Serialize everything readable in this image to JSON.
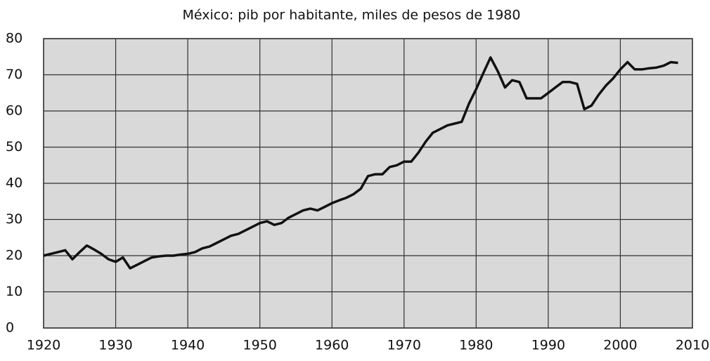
{
  "chart_data": {
    "type": "line",
    "title": "México: pib por habitante, miles de pesos de 1980",
    "xlim": [
      1920,
      2010
    ],
    "xticks": [
      1920,
      1930,
      1940,
      1950,
      1960,
      1970,
      1980,
      1990,
      2000,
      2010
    ],
    "ylim": [
      0,
      80
    ],
    "yticks": [
      0,
      10,
      20,
      30,
      40,
      50,
      60,
      70,
      80
    ],
    "grid": true,
    "x": [
      1920,
      1921,
      1922,
      1923,
      1924,
      1925,
      1926,
      1927,
      1928,
      1929,
      1930,
      1931,
      1932,
      1933,
      1934,
      1935,
      1936,
      1937,
      1938,
      1939,
      1940,
      1941,
      1942,
      1943,
      1944,
      1945,
      1946,
      1947,
      1948,
      1949,
      1950,
      1951,
      1952,
      1953,
      1954,
      1955,
      1956,
      1957,
      1958,
      1959,
      1960,
      1961,
      1962,
      1963,
      1964,
      1965,
      1966,
      1967,
      1968,
      1969,
      1970,
      1971,
      1972,
      1973,
      1974,
      1975,
      1976,
      1977,
      1978,
      1979,
      1980,
      1981,
      1982,
      1983,
      1984,
      1985,
      1986,
      1987,
      1988,
      1989,
      1990,
      1991,
      1992,
      1993,
      1994,
      1995,
      1996,
      1997,
      1998,
      1999,
      2000,
      2001,
      2002,
      2003,
      2004,
      2005,
      2006,
      2007,
      2008
    ],
    "series": [
      {
        "color": "#111111",
        "values": [
          20,
          20.5,
          21,
          21.5,
          19,
          21,
          22.8,
          21.7,
          20.5,
          19,
          18.3,
          19.5,
          16.5,
          17.5,
          18.5,
          19.5,
          19.8,
          20,
          20,
          20.3,
          20.5,
          21,
          22,
          22.5,
          23.5,
          24.5,
          25.5,
          26,
          27,
          28,
          29,
          29.5,
          28.5,
          29,
          30.5,
          31.5,
          32.5,
          33,
          32.5,
          33.5,
          34.5,
          35.3,
          36,
          37,
          38.5,
          42,
          42.5,
          42.5,
          44.5,
          45,
          46,
          46,
          48.5,
          51.5,
          54,
          55,
          56,
          56.5,
          57,
          62,
          66,
          70.5,
          74.8,
          71,
          66.5,
          68.5,
          68,
          63.5,
          63.5,
          63.5,
          65,
          66.5,
          68,
          68,
          67.5,
          60.5,
          61.5,
          64.5,
          67,
          69,
          71.5,
          73.5,
          71.5,
          71.5,
          71.8,
          72,
          72.5,
          73.5,
          73.3
        ]
      }
    ]
  }
}
